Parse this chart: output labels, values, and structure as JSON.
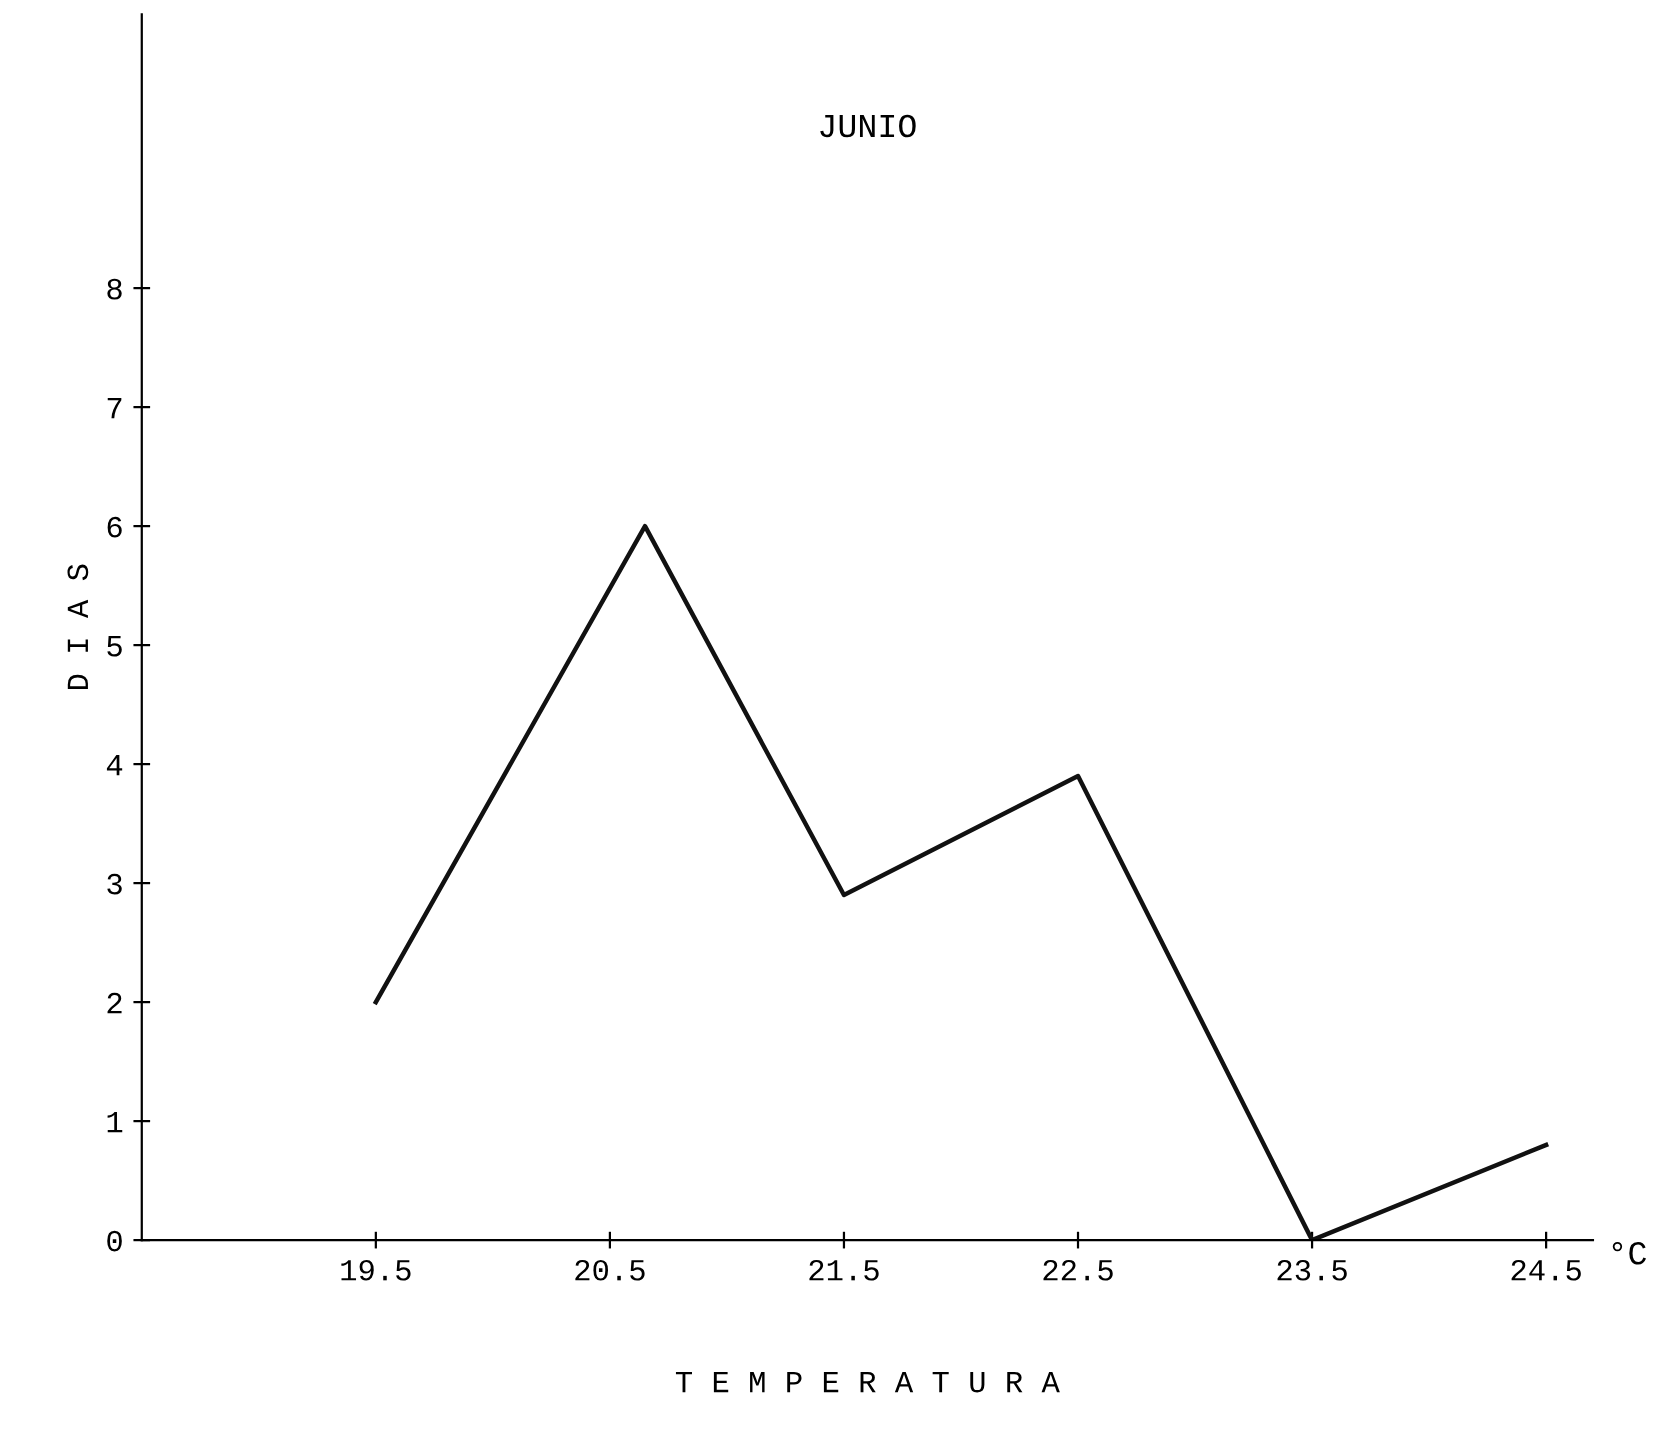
{
  "chart_data": {
    "type": "line",
    "title": "JUNIO",
    "xlabel": "T E M P E R A T U R A",
    "ylabel": "D I A S",
    "annotations": [
      "°C"
    ],
    "x": [
      19.5,
      20.65,
      21.5,
      22.5,
      23.5,
      24.5
    ],
    "series": [
      {
        "color": "#111111",
        "values": [
          2,
          6,
          2.9,
          3.9,
          0,
          0.8
        ]
      }
    ],
    "xlim": [
      18.5,
      24.7
    ],
    "xticks": [
      19.5,
      20.5,
      21.5,
      22.5,
      23.5,
      24.5
    ],
    "ylim": [
      0,
      10.3
    ],
    "yticks": [
      0,
      1,
      2,
      3,
      4,
      5,
      6,
      7,
      8
    ],
    "grid": false,
    "legend": false,
    "marker": "none",
    "line_style": "solid"
  }
}
